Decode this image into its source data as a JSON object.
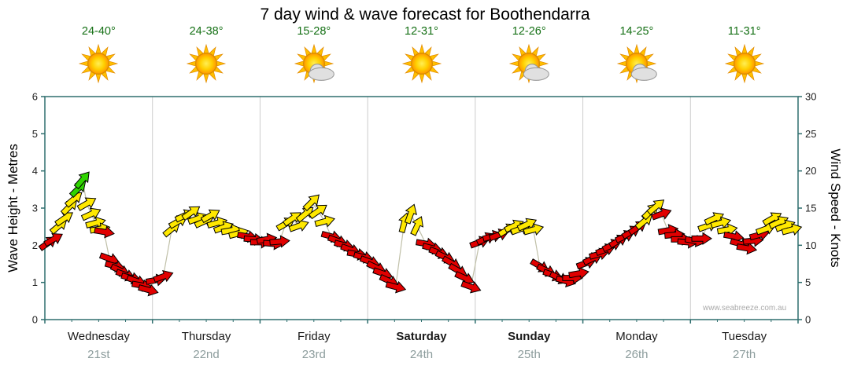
{
  "title": "7 day wind & wave forecast for Boothendarra",
  "watermark": "www.seabreeze.com.au",
  "axes": {
    "left_label": "Wave Height - Metres",
    "right_label": "Wind Speed - Knots"
  },
  "days": [
    {
      "name": "Wednesday",
      "date": "21st",
      "temp": "24-40°",
      "icon": "sun",
      "weekend": false
    },
    {
      "name": "Thursday",
      "date": "22nd",
      "temp": "24-38°",
      "icon": "sun",
      "weekend": false
    },
    {
      "name": "Friday",
      "date": "23rd",
      "temp": "15-28°",
      "icon": "sun-cloud",
      "weekend": false
    },
    {
      "name": "Saturday",
      "date": "24th",
      "temp": "12-31°",
      "icon": "sun",
      "weekend": true
    },
    {
      "name": "Sunday",
      "date": "25th",
      "temp": "12-26°",
      "icon": "sun-cloud",
      "weekend": true
    },
    {
      "name": "Monday",
      "date": "26th",
      "temp": "14-25°",
      "icon": "sun-cloud",
      "weekend": false
    },
    {
      "name": "Tuesday",
      "date": "27th",
      "temp": "11-31°",
      "icon": "sun",
      "weekend": false
    }
  ],
  "colors": {
    "arrow_red": "#e10000",
    "arrow_yellow": "#ffe800",
    "arrow_green": "#2fd400",
    "axis": "#2e6e6e",
    "grid": "#cccccc",
    "tick_text": "#222222",
    "temp_text": "#157015",
    "date_text": "#8c9c9c",
    "day_text": "#1a1a1a",
    "line": "#c0c0a8"
  },
  "chart_data": {
    "type": "scatter",
    "title": "7 day wind & wave forecast for Boothendarra",
    "x_axis": {
      "unit": "days",
      "range": [
        0,
        7
      ],
      "categories": [
        "Wednesday 21st",
        "Thursday 22nd",
        "Friday 23rd",
        "Saturday 24th",
        "Sunday 25th",
        "Monday 26th",
        "Tuesday 27th"
      ]
    },
    "y_left": {
      "label": "Wave Height - Metres",
      "range": [
        0,
        6
      ],
      "ticks": [
        0,
        1,
        2,
        3,
        4,
        5,
        6
      ]
    },
    "y_right": {
      "label": "Wind Speed - Knots",
      "range": [
        0,
        30
      ],
      "ticks": [
        0,
        5,
        10,
        15,
        20,
        25,
        30
      ]
    },
    "grid": "vertical-day-boundaries",
    "point_format": {
      "t": "time in days from chart start",
      "k": "wind speed in knots (right axis; wave metres = k/5)",
      "d": "arrow direction in degrees, 0 = pointing right, positive = rotated upward",
      "c": "arrow colour key: r=red light wind, y=yellow moderate, g=green fresh"
    },
    "points": [
      {
        "t": 0.03,
        "k": 10.3,
        "d": 35,
        "c": "r"
      },
      {
        "t": 0.08,
        "k": 10.8,
        "d": 30,
        "c": "r"
      },
      {
        "t": 0.13,
        "k": 12.6,
        "d": 40,
        "c": "y"
      },
      {
        "t": 0.18,
        "k": 13.6,
        "d": 35,
        "c": "y"
      },
      {
        "t": 0.23,
        "k": 15.2,
        "d": 45,
        "c": "y"
      },
      {
        "t": 0.27,
        "k": 16.2,
        "d": 40,
        "c": "y"
      },
      {
        "t": 0.31,
        "k": 17.6,
        "d": 45,
        "c": "g"
      },
      {
        "t": 0.35,
        "k": 18.8,
        "d": 50,
        "c": "g"
      },
      {
        "t": 0.39,
        "k": 15.6,
        "d": 30,
        "c": "y"
      },
      {
        "t": 0.43,
        "k": 14.2,
        "d": 25,
        "c": "y"
      },
      {
        "t": 0.47,
        "k": 13.0,
        "d": 15,
        "c": "y"
      },
      {
        "t": 0.51,
        "k": 12.2,
        "d": 10,
        "c": "y"
      },
      {
        "t": 0.55,
        "k": 11.8,
        "d": -10,
        "c": "r"
      },
      {
        "t": 0.6,
        "k": 8.2,
        "d": -20,
        "c": "r"
      },
      {
        "t": 0.65,
        "k": 7.2,
        "d": -15,
        "c": "r"
      },
      {
        "t": 0.7,
        "k": 6.6,
        "d": -25,
        "c": "r"
      },
      {
        "t": 0.75,
        "k": 6.0,
        "d": -20,
        "c": "r"
      },
      {
        "t": 0.8,
        "k": 5.6,
        "d": -15,
        "c": "r"
      },
      {
        "t": 0.85,
        "k": 5.2,
        "d": -20,
        "c": "r"
      },
      {
        "t": 0.9,
        "k": 4.6,
        "d": -10,
        "c": "r"
      },
      {
        "t": 0.96,
        "k": 4.0,
        "d": -15,
        "c": "r"
      },
      {
        "t": 1.03,
        "k": 5.3,
        "d": 10,
        "c": "r"
      },
      {
        "t": 1.1,
        "k": 5.8,
        "d": 20,
        "c": "r"
      },
      {
        "t": 1.18,
        "k": 12.2,
        "d": 40,
        "c": "y"
      },
      {
        "t": 1.24,
        "k": 13.2,
        "d": 30,
        "c": "y"
      },
      {
        "t": 1.3,
        "k": 14.0,
        "d": 25,
        "c": "y"
      },
      {
        "t": 1.36,
        "k": 14.4,
        "d": 35,
        "c": "y"
      },
      {
        "t": 1.42,
        "k": 13.6,
        "d": 20,
        "c": "y"
      },
      {
        "t": 1.48,
        "k": 13.2,
        "d": 25,
        "c": "y"
      },
      {
        "t": 1.54,
        "k": 14.0,
        "d": 30,
        "c": "y"
      },
      {
        "t": 1.6,
        "k": 13.0,
        "d": 15,
        "c": "y"
      },
      {
        "t": 1.66,
        "k": 12.4,
        "d": 20,
        "c": "y"
      },
      {
        "t": 1.73,
        "k": 12.0,
        "d": 10,
        "c": "y"
      },
      {
        "t": 1.8,
        "k": 11.6,
        "d": 15,
        "c": "y"
      },
      {
        "t": 1.88,
        "k": 11.2,
        "d": -10,
        "c": "r"
      },
      {
        "t": 1.94,
        "k": 10.8,
        "d": -5,
        "c": "r"
      },
      {
        "t": 2.0,
        "k": 10.4,
        "d": 0,
        "c": "r"
      },
      {
        "t": 2.06,
        "k": 10.8,
        "d": 10,
        "c": "r"
      },
      {
        "t": 2.12,
        "k": 10.2,
        "d": -5,
        "c": "r"
      },
      {
        "t": 2.18,
        "k": 10.5,
        "d": 5,
        "c": "r"
      },
      {
        "t": 2.24,
        "k": 12.9,
        "d": 30,
        "c": "y"
      },
      {
        "t": 2.3,
        "k": 13.6,
        "d": 35,
        "c": "y"
      },
      {
        "t": 2.36,
        "k": 12.6,
        "d": 20,
        "c": "y"
      },
      {
        "t": 2.42,
        "k": 14.2,
        "d": 40,
        "c": "y"
      },
      {
        "t": 2.48,
        "k": 15.8,
        "d": 45,
        "c": "y"
      },
      {
        "t": 2.54,
        "k": 14.6,
        "d": 35,
        "c": "y"
      },
      {
        "t": 2.6,
        "k": 13.2,
        "d": 15,
        "c": "y"
      },
      {
        "t": 2.66,
        "k": 11.2,
        "d": -15,
        "c": "r"
      },
      {
        "t": 2.72,
        "k": 10.6,
        "d": -20,
        "c": "r"
      },
      {
        "t": 2.78,
        "k": 10.0,
        "d": -15,
        "c": "r"
      },
      {
        "t": 2.84,
        "k": 9.4,
        "d": -20,
        "c": "r"
      },
      {
        "t": 2.9,
        "k": 8.8,
        "d": -10,
        "c": "r"
      },
      {
        "t": 2.96,
        "k": 8.4,
        "d": -15,
        "c": "r"
      },
      {
        "t": 3.02,
        "k": 7.8,
        "d": -20,
        "c": "r"
      },
      {
        "t": 3.08,
        "k": 7.0,
        "d": -25,
        "c": "r"
      },
      {
        "t": 3.14,
        "k": 6.2,
        "d": -20,
        "c": "r"
      },
      {
        "t": 3.2,
        "k": 5.2,
        "d": -25,
        "c": "r"
      },
      {
        "t": 3.26,
        "k": 4.4,
        "d": -15,
        "c": "r"
      },
      {
        "t": 3.34,
        "k": 13.0,
        "d": 75,
        "c": "y"
      },
      {
        "t": 3.4,
        "k": 14.2,
        "d": 70,
        "c": "y"
      },
      {
        "t": 3.46,
        "k": 12.6,
        "d": 65,
        "c": "y"
      },
      {
        "t": 3.54,
        "k": 10.2,
        "d": -10,
        "c": "r"
      },
      {
        "t": 3.6,
        "k": 9.6,
        "d": -15,
        "c": "r"
      },
      {
        "t": 3.66,
        "k": 9.0,
        "d": -20,
        "c": "r"
      },
      {
        "t": 3.72,
        "k": 8.4,
        "d": -25,
        "c": "r"
      },
      {
        "t": 3.78,
        "k": 7.6,
        "d": -30,
        "c": "r"
      },
      {
        "t": 3.84,
        "k": 6.6,
        "d": -30,
        "c": "r"
      },
      {
        "t": 3.9,
        "k": 5.6,
        "d": -25,
        "c": "r"
      },
      {
        "t": 3.96,
        "k": 4.4,
        "d": -20,
        "c": "r"
      },
      {
        "t": 4.04,
        "k": 10.4,
        "d": 20,
        "c": "r"
      },
      {
        "t": 4.1,
        "k": 10.9,
        "d": 25,
        "c": "r"
      },
      {
        "t": 4.16,
        "k": 11.2,
        "d": 15,
        "c": "r"
      },
      {
        "t": 4.22,
        "k": 11.4,
        "d": 20,
        "c": "r"
      },
      {
        "t": 4.3,
        "k": 12.1,
        "d": 30,
        "c": "y"
      },
      {
        "t": 4.36,
        "k": 12.6,
        "d": 25,
        "c": "y"
      },
      {
        "t": 4.42,
        "k": 12.2,
        "d": 20,
        "c": "y"
      },
      {
        "t": 4.48,
        "k": 12.8,
        "d": 25,
        "c": "y"
      },
      {
        "t": 4.54,
        "k": 12.1,
        "d": 15,
        "c": "y"
      },
      {
        "t": 4.6,
        "k": 7.2,
        "d": -30,
        "c": "r"
      },
      {
        "t": 4.66,
        "k": 6.6,
        "d": -25,
        "c": "r"
      },
      {
        "t": 4.72,
        "k": 6.0,
        "d": -20,
        "c": "r"
      },
      {
        "t": 4.78,
        "k": 5.6,
        "d": -25,
        "c": "r"
      },
      {
        "t": 4.84,
        "k": 5.2,
        "d": -15,
        "c": "r"
      },
      {
        "t": 4.9,
        "k": 5.6,
        "d": 0,
        "c": "r"
      },
      {
        "t": 4.96,
        "k": 6.2,
        "d": 10,
        "c": "r"
      },
      {
        "t": 5.03,
        "k": 7.6,
        "d": 20,
        "c": "r"
      },
      {
        "t": 5.09,
        "k": 8.2,
        "d": 25,
        "c": "r"
      },
      {
        "t": 5.15,
        "k": 8.8,
        "d": 15,
        "c": "r"
      },
      {
        "t": 5.21,
        "k": 9.4,
        "d": 20,
        "c": "r"
      },
      {
        "t": 5.27,
        "k": 10.0,
        "d": 25,
        "c": "r"
      },
      {
        "t": 5.33,
        "k": 10.6,
        "d": 30,
        "c": "r"
      },
      {
        "t": 5.39,
        "k": 11.2,
        "d": 25,
        "c": "r"
      },
      {
        "t": 5.45,
        "k": 11.8,
        "d": 30,
        "c": "r"
      },
      {
        "t": 5.51,
        "k": 12.4,
        "d": 35,
        "c": "r"
      },
      {
        "t": 5.57,
        "k": 13.2,
        "d": 40,
        "c": "y"
      },
      {
        "t": 5.63,
        "k": 14.6,
        "d": 45,
        "c": "y"
      },
      {
        "t": 5.68,
        "k": 15.2,
        "d": 40,
        "c": "y"
      },
      {
        "t": 5.73,
        "k": 14.2,
        "d": 20,
        "c": "r"
      },
      {
        "t": 5.79,
        "k": 12.0,
        "d": 10,
        "c": "r"
      },
      {
        "t": 5.85,
        "k": 11.4,
        "d": 5,
        "c": "r"
      },
      {
        "t": 5.91,
        "k": 10.8,
        "d": 0,
        "c": "r"
      },
      {
        "t": 5.97,
        "k": 10.4,
        "d": -5,
        "c": "r"
      },
      {
        "t": 6.04,
        "k": 10.6,
        "d": -10,
        "c": "r"
      },
      {
        "t": 6.1,
        "k": 10.9,
        "d": 0,
        "c": "r"
      },
      {
        "t": 6.16,
        "k": 12.6,
        "d": 20,
        "c": "y"
      },
      {
        "t": 6.22,
        "k": 13.6,
        "d": 25,
        "c": "y"
      },
      {
        "t": 6.28,
        "k": 13.0,
        "d": 15,
        "c": "y"
      },
      {
        "t": 6.34,
        "k": 12.1,
        "d": 10,
        "c": "y"
      },
      {
        "t": 6.4,
        "k": 11.2,
        "d": -10,
        "c": "r"
      },
      {
        "t": 6.46,
        "k": 10.2,
        "d": -15,
        "c": "r"
      },
      {
        "t": 6.52,
        "k": 9.6,
        "d": -10,
        "c": "r"
      },
      {
        "t": 6.58,
        "k": 10.6,
        "d": 5,
        "c": "r"
      },
      {
        "t": 6.64,
        "k": 11.4,
        "d": 15,
        "c": "r"
      },
      {
        "t": 6.7,
        "k": 12.2,
        "d": 20,
        "c": "y"
      },
      {
        "t": 6.76,
        "k": 13.6,
        "d": 30,
        "c": "y"
      },
      {
        "t": 6.82,
        "k": 13.1,
        "d": 25,
        "c": "y"
      },
      {
        "t": 6.88,
        "k": 12.6,
        "d": 20,
        "c": "y"
      },
      {
        "t": 6.94,
        "k": 12.1,
        "d": 15,
        "c": "y"
      }
    ]
  }
}
